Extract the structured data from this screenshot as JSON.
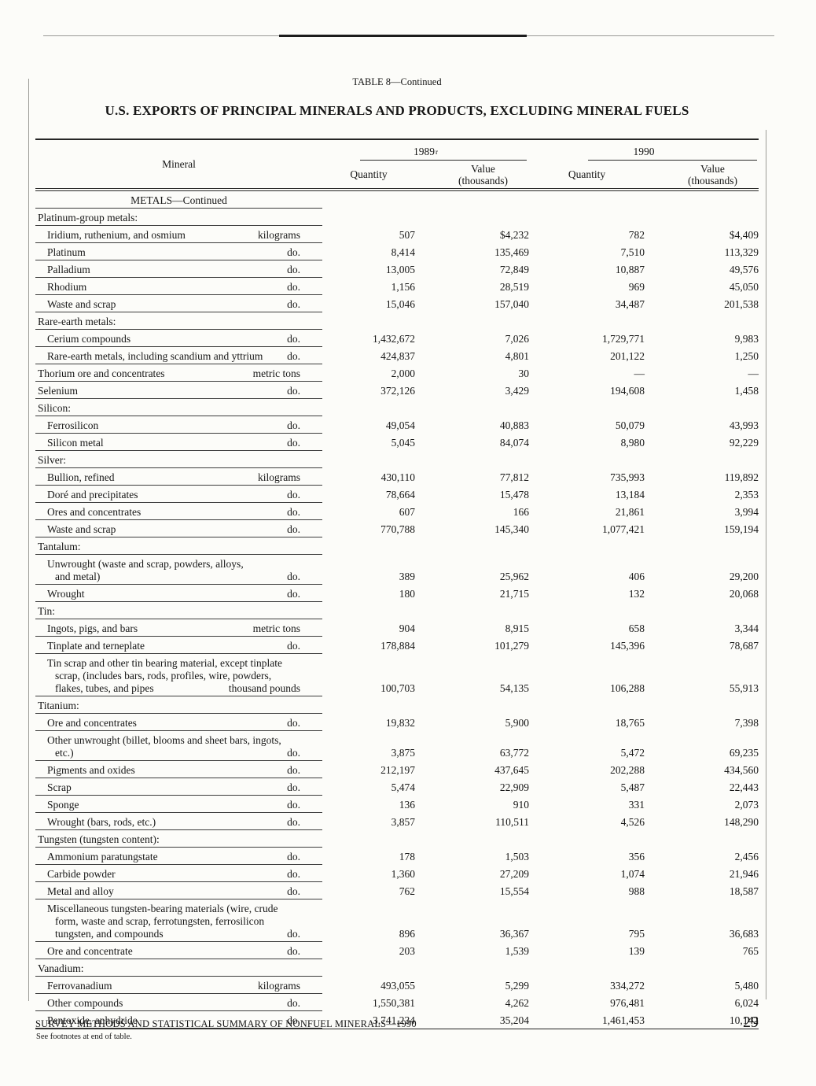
{
  "page": {
    "table_label": "TABLE 8—Continued",
    "title": "U.S. EXPORTS OF PRINCIPAL MINERALS AND PRODUCTS, EXCLUDING MINERAL FUELS",
    "footnote": "See footnotes at end of table.",
    "footer_left": "SURVEY METHODS AND STATISTICAL SUMMARY OF NONFUEL MINERALS—1990",
    "page_number": "29"
  },
  "table": {
    "col_mineral": "Mineral",
    "year1": "1989",
    "year1_sup": "r",
    "year2": "1990",
    "col_quantity": "Quantity",
    "col_value_line1": "Value",
    "col_value_line2": "(thousands)",
    "section": "METALS—Continued",
    "rows": [
      {
        "type": "group",
        "indent": 0,
        "lines": [
          "Platinum-group metals:"
        ]
      },
      {
        "type": "item",
        "indent": 1,
        "lines": [
          "Iridium, ruthenium, and osmium"
        ],
        "unit": "kilograms",
        "q1": "507",
        "v1": "$4,232",
        "q2": "782",
        "v2": "$4,409"
      },
      {
        "type": "item",
        "indent": 1,
        "lines": [
          "Platinum"
        ],
        "unit": "do.",
        "q1": "8,414",
        "v1": "135,469",
        "q2": "7,510",
        "v2": "113,329"
      },
      {
        "type": "item",
        "indent": 1,
        "lines": [
          "Palladium"
        ],
        "unit": "do.",
        "q1": "13,005",
        "v1": "72,849",
        "q2": "10,887",
        "v2": "49,576"
      },
      {
        "type": "item",
        "indent": 1,
        "lines": [
          "Rhodium"
        ],
        "unit": "do.",
        "q1": "1,156",
        "v1": "28,519",
        "q2": "969",
        "v2": "45,050"
      },
      {
        "type": "item",
        "indent": 1,
        "lines": [
          "Waste and scrap"
        ],
        "unit": "do.",
        "q1": "15,046",
        "v1": "157,040",
        "q2": "34,487",
        "v2": "201,538"
      },
      {
        "type": "group",
        "indent": 0,
        "lines": [
          "Rare-earth metals:"
        ]
      },
      {
        "type": "item",
        "indent": 1,
        "lines": [
          "Cerium compounds"
        ],
        "unit": "do.",
        "q1": "1,432,672",
        "v1": "7,026",
        "q2": "1,729,771",
        "v2": "9,983"
      },
      {
        "type": "item",
        "indent": 1,
        "lines": [
          "Rare-earth metals, including scandium and yttrium"
        ],
        "unit": "do.",
        "q1": "424,837",
        "v1": "4,801",
        "q2": "201,122",
        "v2": "1,250"
      },
      {
        "type": "item",
        "indent": 0,
        "lines": [
          "Thorium ore and concentrates"
        ],
        "unit": "metric tons",
        "q1": "2,000",
        "v1": "30",
        "q2": "—",
        "v2": "—"
      },
      {
        "type": "item",
        "indent": 0,
        "lines": [
          "Selenium"
        ],
        "unit": "do.",
        "q1": "372,126",
        "v1": "3,429",
        "q2": "194,608",
        "v2": "1,458"
      },
      {
        "type": "group",
        "indent": 0,
        "lines": [
          "Silicon:"
        ]
      },
      {
        "type": "item",
        "indent": 1,
        "lines": [
          "Ferrosilicon"
        ],
        "unit": "do.",
        "q1": "49,054",
        "v1": "40,883",
        "q2": "50,079",
        "v2": "43,993"
      },
      {
        "type": "item",
        "indent": 1,
        "lines": [
          "Silicon metal"
        ],
        "unit": "do.",
        "q1": "5,045",
        "v1": "84,074",
        "q2": "8,980",
        "v2": "92,229"
      },
      {
        "type": "group",
        "indent": 0,
        "lines": [
          "Silver:"
        ]
      },
      {
        "type": "item",
        "indent": 1,
        "lines": [
          "Bullion, refined"
        ],
        "unit": "kilograms",
        "q1": "430,110",
        "v1": "77,812",
        "q2": "735,993",
        "v2": "119,892"
      },
      {
        "type": "item",
        "indent": 1,
        "lines": [
          "Doré and precipitates"
        ],
        "unit": "do.",
        "q1": "78,664",
        "v1": "15,478",
        "q2": "13,184",
        "v2": "2,353"
      },
      {
        "type": "item",
        "indent": 1,
        "lines": [
          "Ores and concentrates"
        ],
        "unit": "do.",
        "q1": "607",
        "v1": "166",
        "q2": "21,861",
        "v2": "3,994"
      },
      {
        "type": "item",
        "indent": 1,
        "lines": [
          "Waste and scrap"
        ],
        "unit": "do.",
        "q1": "770,788",
        "v1": "145,340",
        "q2": "1,077,421",
        "v2": "159,194"
      },
      {
        "type": "group",
        "indent": 0,
        "lines": [
          "Tantalum:"
        ]
      },
      {
        "type": "item",
        "indent": 1,
        "lines": [
          "Unwrought (waste and scrap, powders, alloys,",
          "and metal)"
        ],
        "unit": "do.",
        "q1": "389",
        "v1": "25,962",
        "q2": "406",
        "v2": "29,200"
      },
      {
        "type": "item",
        "indent": 1,
        "lines": [
          "Wrought"
        ],
        "unit": "do.",
        "q1": "180",
        "v1": "21,715",
        "q2": "132",
        "v2": "20,068"
      },
      {
        "type": "group",
        "indent": 0,
        "lines": [
          "Tin:"
        ]
      },
      {
        "type": "item",
        "indent": 1,
        "lines": [
          "Ingots, pigs, and bars"
        ],
        "unit": "metric tons",
        "q1": "904",
        "v1": "8,915",
        "q2": "658",
        "v2": "3,344"
      },
      {
        "type": "item",
        "indent": 1,
        "lines": [
          "Tinplate and terneplate"
        ],
        "unit": "do.",
        "q1": "178,884",
        "v1": "101,279",
        "q2": "145,396",
        "v2": "78,687"
      },
      {
        "type": "item",
        "indent": 1,
        "lines": [
          "Tin scrap and other tin bearing material, except tinplate",
          "scrap, (includes bars, rods, profiles, wire, powders,",
          "flakes, tubes, and pipes"
        ],
        "unit": "thousand pounds",
        "q1": "100,703",
        "v1": "54,135",
        "q2": "106,288",
        "v2": "55,913"
      },
      {
        "type": "group",
        "indent": 0,
        "lines": [
          "Titanium:"
        ]
      },
      {
        "type": "item",
        "indent": 1,
        "lines": [
          "Ore and concentrates"
        ],
        "unit": "do.",
        "q1": "19,832",
        "v1": "5,900",
        "q2": "18,765",
        "v2": "7,398"
      },
      {
        "type": "item",
        "indent": 1,
        "lines": [
          "Other unwrought (billet, blooms and sheet bars, ingots,",
          "etc.)"
        ],
        "unit": "do.",
        "q1": "3,875",
        "v1": "63,772",
        "q2": "5,472",
        "v2": "69,235"
      },
      {
        "type": "item",
        "indent": 1,
        "lines": [
          "Pigments and oxides"
        ],
        "unit": "do.",
        "q1": "212,197",
        "v1": "437,645",
        "q2": "202,288",
        "v2": "434,560"
      },
      {
        "type": "item",
        "indent": 1,
        "lines": [
          "Scrap"
        ],
        "unit": "do.",
        "q1": "5,474",
        "v1": "22,909",
        "q2": "5,487",
        "v2": "22,443"
      },
      {
        "type": "item",
        "indent": 1,
        "lines": [
          "Sponge"
        ],
        "unit": "do.",
        "q1": "136",
        "v1": "910",
        "q2": "331",
        "v2": "2,073"
      },
      {
        "type": "item",
        "indent": 1,
        "lines": [
          "Wrought (bars, rods, etc.)"
        ],
        "unit": "do.",
        "q1": "3,857",
        "v1": "110,511",
        "q2": "4,526",
        "v2": "148,290"
      },
      {
        "type": "group",
        "indent": 0,
        "lines": [
          "Tungsten (tungsten content):"
        ]
      },
      {
        "type": "item",
        "indent": 1,
        "lines": [
          "Ammonium paratungstate"
        ],
        "unit": "do.",
        "q1": "178",
        "v1": "1,503",
        "q2": "356",
        "v2": "2,456"
      },
      {
        "type": "item",
        "indent": 1,
        "lines": [
          "Carbide powder"
        ],
        "unit": "do.",
        "q1": "1,360",
        "v1": "27,209",
        "q2": "1,074",
        "v2": "21,946"
      },
      {
        "type": "item",
        "indent": 1,
        "lines": [
          "Metal and alloy"
        ],
        "unit": "do.",
        "q1": "762",
        "v1": "15,554",
        "q2": "988",
        "v2": "18,587"
      },
      {
        "type": "item",
        "indent": 1,
        "lines": [
          "Miscellaneous tungsten-bearing materials (wire, crude",
          "form, waste and scrap, ferrotungsten, ferrosilicon",
          "tungsten, and compounds"
        ],
        "unit": "do.",
        "q1": "896",
        "v1": "36,367",
        "q2": "795",
        "v2": "36,683"
      },
      {
        "type": "item",
        "indent": 1,
        "lines": [
          "Ore and concentrate"
        ],
        "unit": "do.",
        "q1": "203",
        "v1": "1,539",
        "q2": "139",
        "v2": "765"
      },
      {
        "type": "group",
        "indent": 0,
        "lines": [
          "Vanadium:"
        ]
      },
      {
        "type": "item",
        "indent": 1,
        "lines": [
          "Ferrovanadium"
        ],
        "unit": "kilograms",
        "q1": "493,055",
        "v1": "5,299",
        "q2": "334,272",
        "v2": "5,480"
      },
      {
        "type": "item",
        "indent": 1,
        "lines": [
          "Other compounds"
        ],
        "unit": "do.",
        "q1": "1,550,381",
        "v1": "4,262",
        "q2": "976,481",
        "v2": "6,024"
      },
      {
        "type": "item",
        "indent": 1,
        "lines": [
          "Pentoxide, anhydride"
        ],
        "unit": "do.",
        "q1": "3,741,234",
        "v1": "35,204",
        "q2": "1,461,453",
        "v2": "10,142"
      }
    ]
  }
}
